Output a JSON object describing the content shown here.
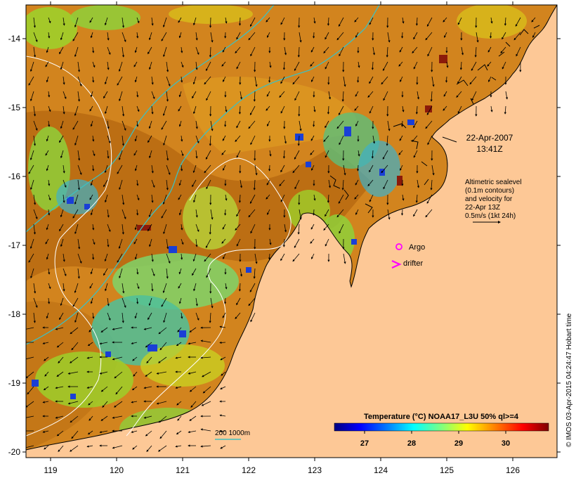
{
  "map": {
    "x_ticks": [
      "119",
      "120",
      "121",
      "122",
      "123",
      "124",
      "125",
      "126"
    ],
    "y_ticks": [
      "-14",
      "-15",
      "-16",
      "-17",
      "-18",
      "-19",
      "-20"
    ]
  },
  "annotations": {
    "date": "22-Apr-2007",
    "time": "13:41Z",
    "altimetry_lines": [
      "Altimetric sealevel",
      "(0.1m contours)",
      "and velocity for",
      "22-Apr 13Z",
      "0.5m/s (1kt 24h)"
    ],
    "argo_label": "Argo",
    "drifter_label": "drifter"
  },
  "isobath_legend": {
    "label": "200  1000m"
  },
  "colorbar": {
    "title": "Temperature (°C) NOAA17_L3U 50% ql>=4",
    "ticks": [
      "27",
      "28",
      "29",
      "30"
    ],
    "colors": [
      "#00007f",
      "#0000ff",
      "#007fff",
      "#00ffff",
      "#7fff7f",
      "#ffff00",
      "#ff7f00",
      "#ff0000",
      "#7f0000"
    ]
  },
  "credit": "© IMOS 03-Apr-2015 04:24:47 Hobart time",
  "colors": {
    "land": "#fdc896",
    "sst_warm": "#d2841e",
    "sst_dark": "#b86a12",
    "sst_mid": "#dd9a22",
    "isobath": "#3fbfbf",
    "contour": "#ffffff",
    "marker": "#ff00ff"
  }
}
